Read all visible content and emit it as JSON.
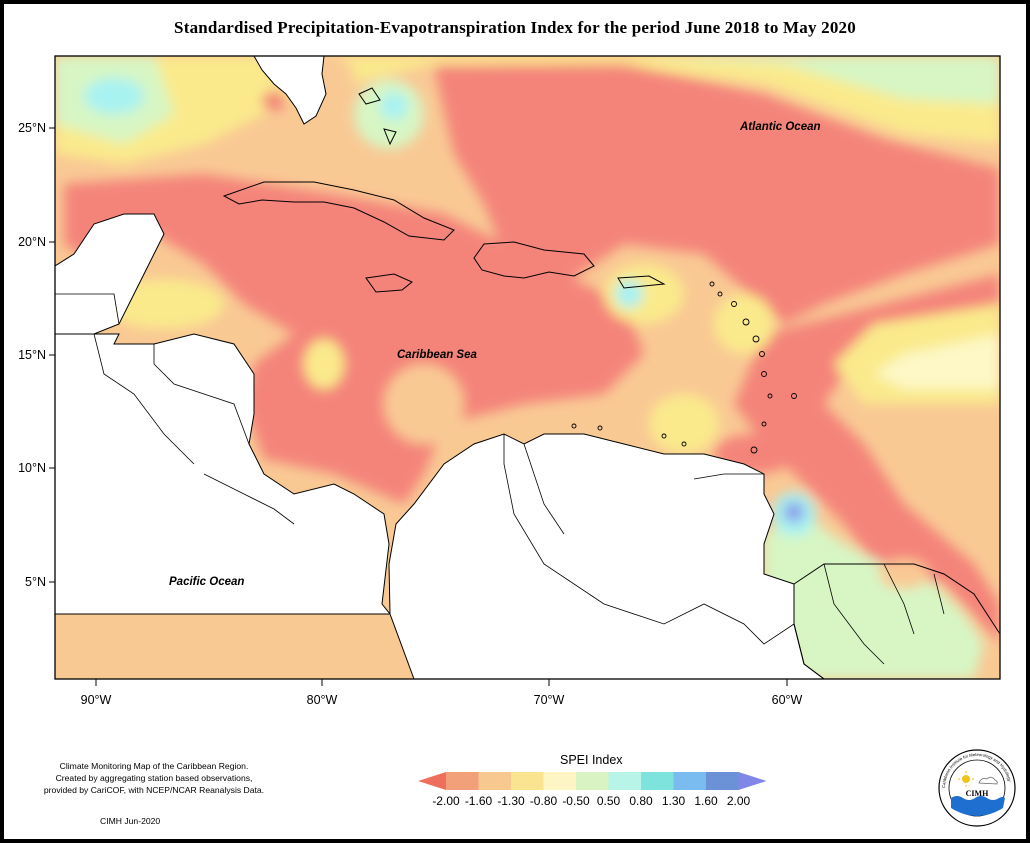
{
  "title": "Standardised Precipitation-Evapotranspiration Index for the period June 2018 to May 2020",
  "map": {
    "y_ticks": [
      "25°N",
      "20°N",
      "15°N",
      "10°N",
      "5°N"
    ],
    "x_ticks": [
      "90°W",
      "80°W",
      "70°W",
      "60°W"
    ],
    "labels": {
      "atlantic": "Atlantic Ocean",
      "caribbean": "Caribbean Sea",
      "pacific": "Pacific Ocean"
    }
  },
  "legend": {
    "title": "SPEI Index",
    "colors": [
      "#ef6f5e",
      "#f2a07a",
      "#f8c891",
      "#fbe48f",
      "#fdf6c4",
      "#d9f3c2",
      "#b8f5e8",
      "#7ee3dc",
      "#7bbcf0",
      "#6b92d6",
      "#7f86e8"
    ],
    "ticks": [
      "-2.00",
      "-1.60",
      "-1.30",
      "-0.80",
      "-0.50",
      "0.50",
      "0.80",
      "1.30",
      "1.60",
      "2.00"
    ]
  },
  "credit": {
    "lines": [
      "Climate Monitoring Map of the Caribbean Region.",
      "Created by aggregating station based observations,",
      "provided by CariCOF, with NCEP/NCAR Reanalysis Data."
    ],
    "date": "CIMH Jun-2020"
  },
  "logo": {
    "text": "CIMH",
    "ring_text": "Caribbean Institute for Meteorology and Hydrology"
  },
  "colors": {
    "severe_dry": "#f4847a",
    "moderate_dry": "#f9c994",
    "mild_dry": "#faea8c",
    "near_normal": "#fdf8c6",
    "mild_wet": "#d7f6c4",
    "wet": "#a8f2f2",
    "very_wet": "#8a9ae8"
  }
}
